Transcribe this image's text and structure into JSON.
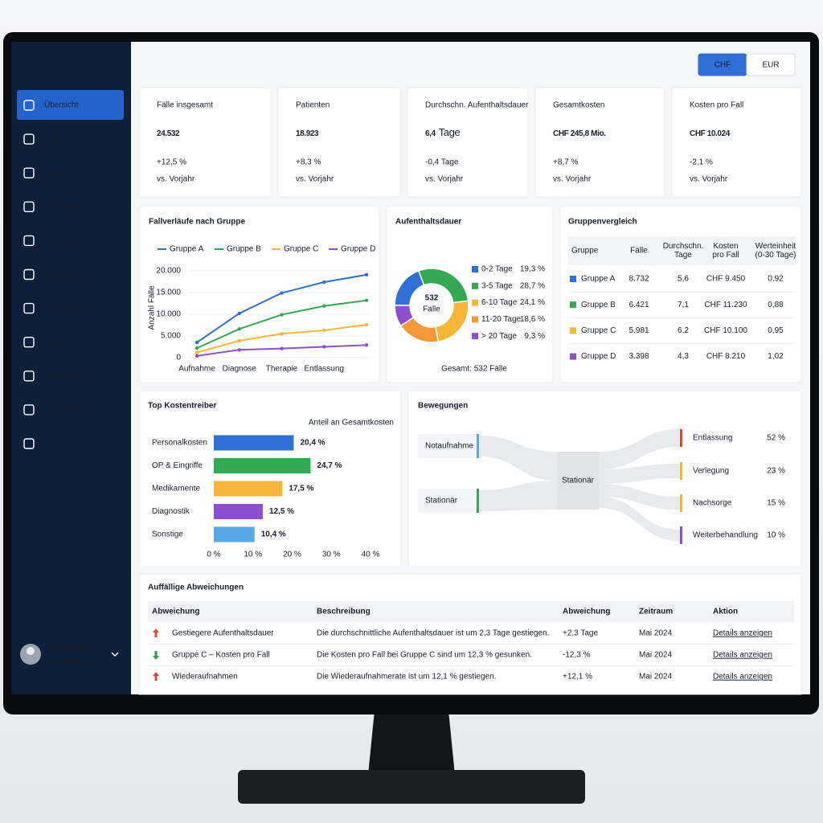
{
  "currency": {
    "options": [
      "CHF",
      "EUR"
    ],
    "selected": 0
  },
  "sidebar": {
    "items": [
      "Übersicht",
      "Fälle",
      "Gruppen",
      "Analysen",
      "Verläufe",
      "Bewegungen",
      "Kostentreiber",
      "Berichte",
      "Datenimport",
      "Einstellungen",
      "Hilfe"
    ],
    "selected": 0,
    "user": {
      "name": "Maria Müller",
      "role": "Administrator"
    }
  },
  "kpis": [
    {
      "label": "Fälle insgesamt",
      "value": "24.532",
      "change": "+12,5 %",
      "change_color": "#2e9e4f",
      "note": "vs. Vorjahr"
    },
    {
      "label": "Patienten",
      "value": "18.923",
      "change": "+8,3 %",
      "change_color": "#2e9e4f",
      "note": "vs. Vorjahr"
    },
    {
      "label": "Durchschn. Aufenthaltsdauer",
      "value": "6,4",
      "unit": "Tage",
      "change": "-0,4 Tage",
      "change_color": "#e0492f",
      "note": "vs. Vorjahr"
    },
    {
      "label": "Gesamtkosten",
      "value": "CHF 245,8 Mio.",
      "change": "+8,7 %",
      "change_color": "#2e9e4f",
      "note": "vs. Vorjahr"
    },
    {
      "label": "Kosten pro Fall",
      "value": "CHF 10.024",
      "change": "-2,1 %",
      "change_color": "#e0492f",
      "note": "vs. Vorjahr"
    }
  ],
  "chart_data": [
    {
      "type": "line",
      "title": "Fallverläufe nach Gruppe",
      "y_label": "Anzahl Fälle",
      "categories": [
        "Aufnahme",
        "Diagnose",
        "Therapie",
        "Entlassung",
        null
      ],
      "series": [
        {
          "name": "Gruppe A",
          "color": "#2f6fd6",
          "values": [
            3500,
            10200,
            14900,
            17400,
            19100
          ]
        },
        {
          "name": "Gruppe B",
          "color": "#34a853",
          "values": [
            2200,
            6600,
            9900,
            11900,
            13200
          ]
        },
        {
          "name": "Gruppe C",
          "color": "#f5b63a",
          "values": [
            1200,
            3900,
            5500,
            6300,
            7600
          ]
        },
        {
          "name": "Gruppe D",
          "color": "#8e4fcf",
          "values": [
            400,
            1800,
            2100,
            2500,
            2900
          ]
        }
      ],
      "ylim": [
        0,
        20000
      ],
      "yticks": [
        0,
        {
          "value": 5000,
          "label": "5.000"
        },
        {
          "value": 10000,
          "label": "10.000"
        },
        {
          "value": 15000,
          "label": "15.000"
        },
        {
          "value": 20000,
          "label": "20.000"
        }
      ],
      "grid": true
    },
    {
      "type": "pie",
      "title": "Aufenthaltsdauer",
      "hole": true,
      "center_value": 532,
      "center_label": "Fälle",
      "footer": "Gesamt: 532 Fälle",
      "categories": [
        "0-2 Tage",
        "3-5 Tage",
        "6-10 Tage",
        "11-20 Tage",
        "> 20 Tage"
      ],
      "values": [
        19.3,
        28.7,
        24.1,
        18.6,
        9.3
      ],
      "value_labels": [
        "19,3 %",
        "28,7 %",
        "24,1 %",
        "18,6 %",
        "9,3 %"
      ],
      "colors": [
        "#2f6fd6",
        "#34a853",
        "#f5b63a",
        "#f29a3a",
        "#8e4fcf"
      ]
    },
    {
      "type": "bar",
      "orientation": "horizontal",
      "title": "Top Kostentreiber",
      "subtitle": "Anteil an Gesamtkosten",
      "categories": [
        "Personalkosten",
        "OP & Eingriffe",
        "Medikamente",
        "Diagnostik",
        "Sonstige"
      ],
      "values": [
        20.4,
        24.7,
        17.5,
        12.5,
        10.4
      ],
      "value_labels": [
        "20,4 %",
        "24,7 %",
        "17,5 %",
        "12,5 %",
        "10,4 %"
      ],
      "colors": [
        "#2f6fd6",
        "#34a853",
        "#f5b63a",
        "#8e4fcf",
        "#5aa9e6"
      ],
      "xlim": [
        0,
        40
      ],
      "xticks": [
        {
          "value": 0,
          "label": "0 %"
        },
        {
          "value": 10,
          "label": "10 %"
        },
        {
          "value": 20,
          "label": "20 %"
        },
        {
          "value": 30,
          "label": "30 %"
        },
        {
          "value": 40,
          "label": "40 %"
        }
      ],
      "grid": false
    }
  ],
  "group_comparison": {
    "title": "Gruppenvergleich",
    "headers": [
      [
        "Gruppe"
      ],
      [
        "Fälle"
      ],
      [
        "Durchschn.",
        "Tage"
      ],
      [
        "Kosten",
        "pro Fall"
      ],
      [
        "Werteinheit",
        "(0-30 Tage)"
      ]
    ],
    "rows": [
      {
        "color": "#2f6fd6",
        "cells": [
          "Gruppe A",
          "8.732",
          "5,6",
          "CHF 9.450",
          "0,92"
        ]
      },
      {
        "color": "#34a853",
        "cells": [
          "Gruppe B",
          "6.421",
          "7,1",
          "CHF 11.230",
          "0,88"
        ]
      },
      {
        "color": "#f5b63a",
        "cells": [
          "Gruppe C",
          "5.981",
          "6,2",
          "CHF 10.100",
          "0,95"
        ]
      },
      {
        "color": "#8e4fcf",
        "cells": [
          "Gruppe D",
          "3.398",
          "4,3",
          "CHF 8.210",
          "1,02"
        ]
      }
    ]
  },
  "movements": {
    "title": "Bewegungen",
    "sources": [
      {
        "label": "Notaufnahme",
        "color": "#5aa9e6"
      },
      {
        "label": "Stationär",
        "color": "#34a853"
      }
    ],
    "hub": "Stationär",
    "targets": [
      {
        "label": "Entlassung",
        "share": "52 %",
        "color": "#e0492f"
      },
      {
        "label": "Verlegung",
        "share": "23 %",
        "color": "#f5b63a"
      },
      {
        "label": "Nachsorge",
        "share": "15 %",
        "color": "#f5b63a"
      },
      {
        "label": "Weiterbehandlung",
        "share": "10 %",
        "color": "#8e4fcf"
      }
    ]
  },
  "deviations": {
    "title": "Auffällige Abweichungen",
    "headers": [
      "Abweichung",
      "Beschreibung",
      "Abweichung",
      "Zeitraum",
      "Aktion"
    ],
    "rows": [
      {
        "direction": "up",
        "cells": [
          "Gestiegere Aufenthaltsdauer",
          "Die durchschnittliche Aufenthaltsdauer ist um 2,3 Tage gestiegen.",
          "+2,3 Tage",
          "Mai 2024",
          "Details anzeigen"
        ]
      },
      {
        "direction": "down",
        "cells": [
          "Gruppe C – Kosten pro Fall",
          "Die Kosten pro Fall bei Gruppe C sind um 12,3 % gesunken.",
          "-12,3 %",
          "Mai 2024",
          "Details anzeigen"
        ]
      },
      {
        "direction": "up",
        "cells": [
          "Wiederaufnahmen",
          "Die Wiederaufnahmerate ist um 12,1 % gestiegen.",
          "+12,1 %",
          "Mai 2024",
          "Details anzeigen"
        ]
      }
    ]
  }
}
